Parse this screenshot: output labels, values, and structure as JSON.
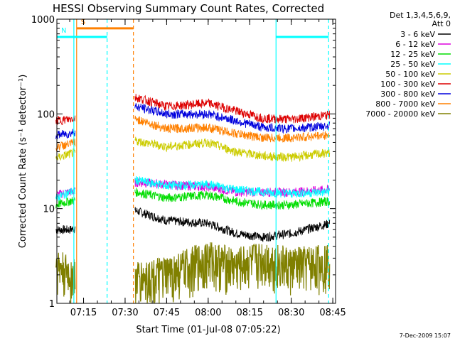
{
  "chart_data": {
    "type": "line",
    "title": "HESSI Observing Summary Count Rates, Corrected",
    "xlabel": "Start Time (01-Jul-08 07:05:22)",
    "ylabel": "Corrected Count Rate (s⁻¹ detector⁻¹)",
    "ylog": true,
    "ylim": [
      1,
      1000
    ],
    "xlim": [
      "07:05:22",
      "08:46:00"
    ],
    "x_ticks": [
      "07:15",
      "07:30",
      "07:45",
      "08:00",
      "08:15",
      "08:30",
      "08:45"
    ],
    "y_ticks": [
      "1",
      "10",
      "100",
      "1000"
    ],
    "legend": {
      "placement": "outside-right",
      "header": [
        "Det 1,3,4,5,6,9,",
        "Att 0"
      ],
      "entries": [
        {
          "label": "3 - 6 keV",
          "color": "#000000"
        },
        {
          "label": "6 - 12 keV",
          "color": "#dd00dd"
        },
        {
          "label": "12 - 25 keV",
          "color": "#00dd00"
        },
        {
          "label": "25 - 50 keV",
          "color": "#00ffff"
        },
        {
          "label": "50 - 100 keV",
          "color": "#cccc00"
        },
        {
          "label": "100 - 300 keV",
          "color": "#dd0000"
        },
        {
          "label": "300 - 800 keV",
          "color": "#0000dd"
        },
        {
          "label": "800 - 7000 keV",
          "color": "#ff8000"
        },
        {
          "label": "7000 - 20000 keV",
          "color": "#808000"
        }
      ]
    },
    "data_gaps": [
      [
        "07:12:00",
        "07:33:30"
      ]
    ],
    "series": [
      {
        "name": "3 - 6 keV",
        "color": "#000000",
        "x": [
          "07:05",
          "07:10",
          "07:34",
          "07:45",
          "08:00",
          "08:10",
          "08:20",
          "08:30",
          "08:44"
        ],
        "y": [
          6,
          6,
          9.5,
          7.5,
          7,
          5.5,
          5,
          5.5,
          7
        ]
      },
      {
        "name": "6 - 12 keV",
        "color": "#dd00dd",
        "x": [
          "07:05",
          "07:10",
          "07:34",
          "07:45",
          "08:00",
          "08:10",
          "08:20",
          "08:30",
          "08:44"
        ],
        "y": [
          14,
          15,
          19,
          18,
          17,
          15,
          15,
          15,
          16
        ]
      },
      {
        "name": "12 - 25 keV",
        "color": "#00dd00",
        "x": [
          "07:05",
          "07:10",
          "07:34",
          "07:45",
          "08:00",
          "08:10",
          "08:20",
          "08:30",
          "08:44"
        ],
        "y": [
          11,
          12,
          15,
          13,
          14,
          12,
          11,
          11,
          12
        ]
      },
      {
        "name": "25 - 50 keV",
        "color": "#00ffff",
        "x": [
          "07:05",
          "07:10",
          "07:34",
          "07:45",
          "08:00",
          "08:10",
          "08:20",
          "08:30",
          "08:44"
        ],
        "y": [
          13,
          15,
          20,
          17.5,
          18,
          16,
          15,
          14.5,
          15
        ]
      },
      {
        "name": "50 - 100 keV",
        "color": "#cccc00",
        "x": [
          "07:05",
          "07:10",
          "07:34",
          "07:45",
          "08:00",
          "08:10",
          "08:20",
          "08:30",
          "08:44"
        ],
        "y": [
          34,
          38,
          52,
          45,
          50,
          40,
          36,
          35,
          39
        ]
      },
      {
        "name": "100 - 300 keV",
        "color": "#dd0000",
        "x": [
          "07:05",
          "07:10",
          "07:34",
          "07:45",
          "08:00",
          "08:10",
          "08:20",
          "08:30",
          "08:44"
        ],
        "y": [
          85,
          88,
          150,
          120,
          130,
          108,
          90,
          88,
          98
        ]
      },
      {
        "name": "300 - 800 keV",
        "color": "#0000dd",
        "x": [
          "07:05",
          "07:10",
          "07:34",
          "07:45",
          "08:00",
          "08:10",
          "08:20",
          "08:30",
          "08:44"
        ],
        "y": [
          60,
          62,
          120,
          100,
          100,
          85,
          72,
          70,
          75
        ]
      },
      {
        "name": "800 - 7000 keV",
        "color": "#ff8000",
        "x": [
          "07:05",
          "07:10",
          "07:34",
          "07:45",
          "08:00",
          "08:10",
          "08:20",
          "08:30",
          "08:44"
        ],
        "y": [
          45,
          48,
          88,
          70,
          72,
          62,
          56,
          56,
          60
        ]
      },
      {
        "name": "7000 - 20000 keV",
        "color": "#808000",
        "x": [
          "07:05",
          "07:10",
          "07:34",
          "07:45",
          "08:00",
          "08:10",
          "08:20",
          "08:30",
          "08:44"
        ],
        "y": [
          2.5,
          2,
          1.8,
          2,
          3,
          2.5,
          3,
          2.5,
          2.8
        ]
      }
    ],
    "flags": [
      {
        "label": "S",
        "color": "#ff8000",
        "level": 800,
        "start": "07:12:30",
        "end": "07:33:00"
      },
      {
        "label": "N",
        "color": "#00ffff",
        "level": 650,
        "start": "07:05:22",
        "end": "07:23:30"
      },
      {
        "label": "",
        "color": "#00ffff",
        "level": 650,
        "start": "08:24:30",
        "end": "08:43:30"
      }
    ],
    "markers": [
      {
        "time": "07:12:30",
        "color": "#ff8000",
        "style": "solid"
      },
      {
        "time": "07:11:30",
        "color": "#00ffff",
        "style": "solid"
      },
      {
        "time": "07:23:30",
        "color": "#00ffff",
        "style": "dashed"
      },
      {
        "time": "07:33:00",
        "color": "#ff8000",
        "style": "dashed"
      },
      {
        "time": "08:24:30",
        "color": "#00ffff",
        "style": "solid"
      },
      {
        "time": "08:43:30",
        "color": "#00ffff",
        "style": "dashed"
      }
    ]
  },
  "footer": {
    "date_stamp": "7-Dec-2009 15:07"
  }
}
